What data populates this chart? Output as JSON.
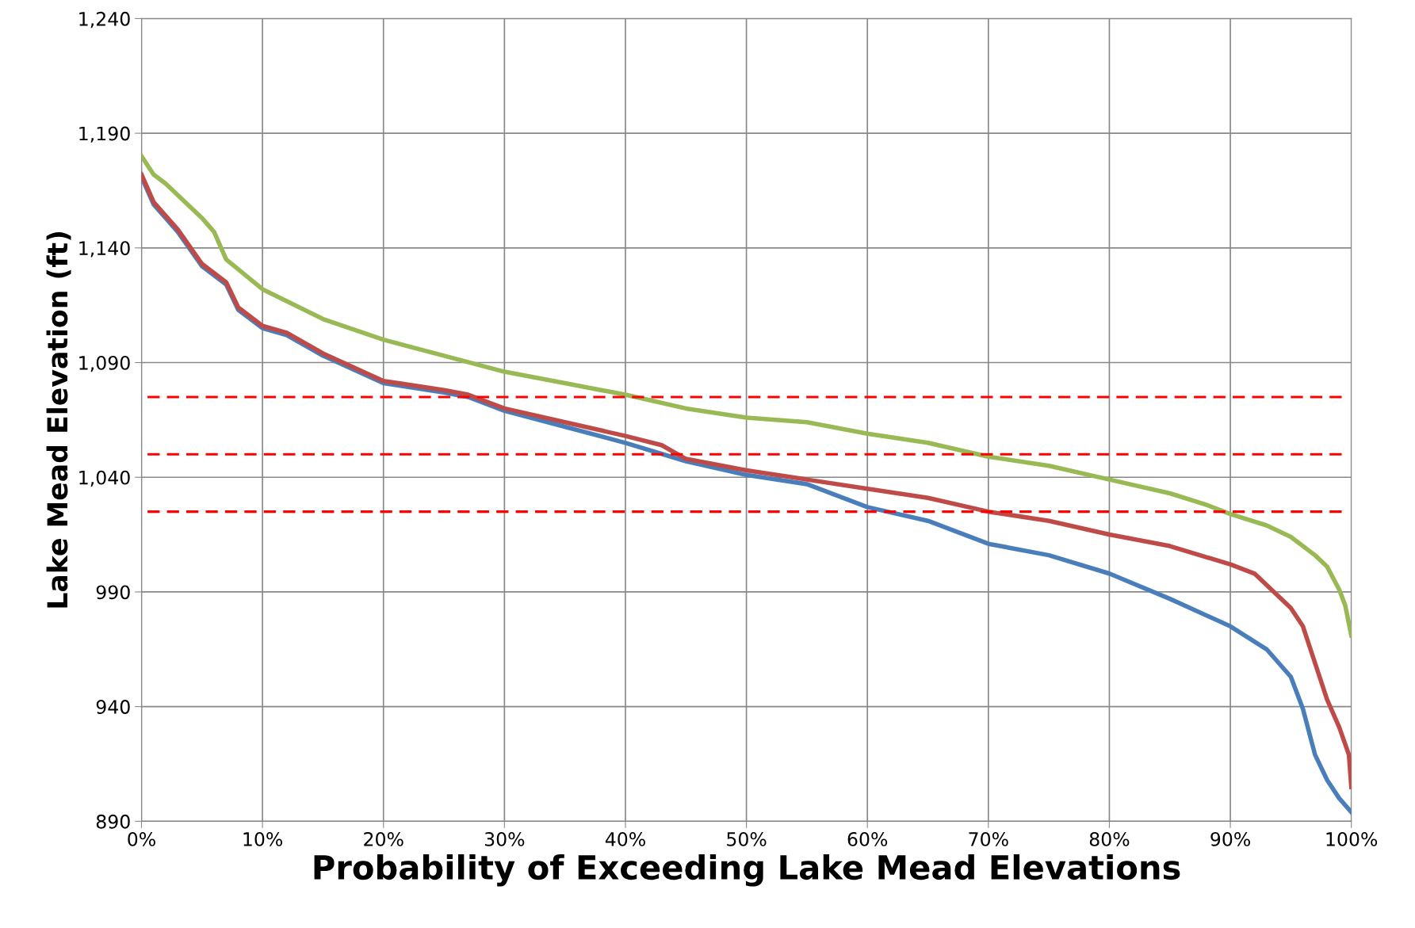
{
  "chart_data": {
    "type": "line",
    "xlabel": "Probability of Exceeding Lake Mead Elevations",
    "ylabel": "Lake Mead Elevation (ft)",
    "xlim": [
      0,
      100
    ],
    "ylim": [
      890,
      1240
    ],
    "xticks": [
      {
        "value": 0,
        "label": "0%"
      },
      {
        "value": 10,
        "label": "10%"
      },
      {
        "value": 20,
        "label": "20%"
      },
      {
        "value": 30,
        "label": "30%"
      },
      {
        "value": 40,
        "label": "40%"
      },
      {
        "value": 50,
        "label": "50%"
      },
      {
        "value": 60,
        "label": "60%"
      },
      {
        "value": 70,
        "label": "70%"
      },
      {
        "value": 80,
        "label": "80%"
      },
      {
        "value": 90,
        "label": "90%"
      },
      {
        "value": 100,
        "label": "100%"
      }
    ],
    "yticks": [
      {
        "value": 890,
        "label": "890"
      },
      {
        "value": 940,
        "label": "940"
      },
      {
        "value": 990,
        "label": "990"
      },
      {
        "value": 1040,
        "label": "1,040"
      },
      {
        "value": 1090,
        "label": "1,090"
      },
      {
        "value": 1140,
        "label": "1,140"
      },
      {
        "value": 1190,
        "label": "1,190"
      },
      {
        "value": 1240,
        "label": "1,240"
      }
    ],
    "grid": true,
    "legend": false,
    "marker": "none",
    "line_style": "solid",
    "series": [
      {
        "color": "#4a7ebb",
        "x": [
          0,
          1,
          2,
          3,
          5,
          7,
          8,
          10,
          12,
          15,
          20,
          25,
          27,
          30,
          35,
          40,
          45,
          50,
          55,
          60,
          65,
          70,
          75,
          80,
          85,
          90,
          93,
          95,
          96,
          97,
          98,
          99,
          100
        ],
        "values": [
          1171,
          1159,
          1153,
          1147,
          1132,
          1124,
          1113,
          1105,
          1102,
          1093,
          1081,
          1077,
          1075,
          1069,
          1062,
          1055,
          1047,
          1041,
          1037,
          1027,
          1021,
          1011,
          1006,
          998,
          987,
          975,
          965,
          953,
          939,
          919,
          908,
          900,
          894
        ]
      },
      {
        "color": "#be4b48",
        "x": [
          0,
          1,
          2,
          3,
          5,
          7,
          8,
          10,
          12,
          15,
          20,
          25,
          27,
          30,
          35,
          40,
          43,
          45,
          50,
          55,
          60,
          65,
          70,
          75,
          80,
          85,
          90,
          92,
          95,
          96,
          97,
          98,
          99,
          99.8,
          100
        ],
        "values": [
          1172,
          1160,
          1154,
          1148,
          1133,
          1125,
          1114,
          1106,
          1103,
          1094,
          1082,
          1078,
          1076,
          1070,
          1064,
          1058,
          1054,
          1048,
          1043,
          1039,
          1035,
          1031,
          1025,
          1021,
          1015,
          1010,
          1002,
          998,
          983,
          975,
          959,
          943,
          931,
          919,
          905
        ]
      },
      {
        "color": "#98b954",
        "x": [
          0,
          1,
          2,
          5,
          6,
          7,
          10,
          15,
          20,
          25,
          30,
          35,
          40,
          45,
          50,
          55,
          60,
          65,
          70,
          75,
          80,
          85,
          88,
          90,
          93,
          95,
          97,
          98,
          99,
          99.5,
          100
        ],
        "values": [
          1180,
          1172,
          1168,
          1153,
          1147,
          1135,
          1122,
          1109,
          1100,
          1093,
          1086,
          1081,
          1076,
          1070,
          1066,
          1064,
          1059,
          1055,
          1049,
          1045,
          1039,
          1033,
          1028,
          1024,
          1019,
          1014,
          1006,
          1001,
          991,
          984,
          971
        ]
      }
    ],
    "ref_lines": [
      {
        "axis": "y",
        "value": 1075,
        "color": "#ff0000",
        "line_style": "dashed"
      },
      {
        "axis": "y",
        "value": 1050,
        "color": "#ff0000",
        "line_style": "dashed"
      },
      {
        "axis": "y",
        "value": 1025,
        "color": "#ff0000",
        "line_style": "dashed"
      }
    ]
  }
}
